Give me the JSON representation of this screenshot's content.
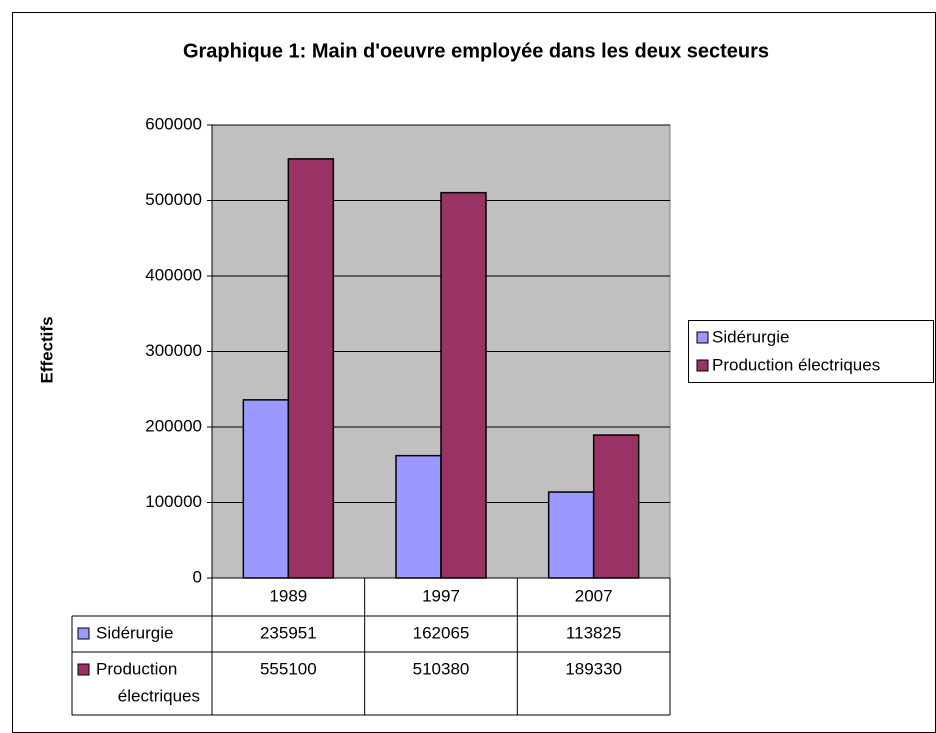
{
  "chart_data": {
    "type": "bar",
    "title": "Graphique 1: Main d'oeuvre employée dans les deux secteurs",
    "y_label": "Effectifs",
    "categories": [
      "1989",
      "1997",
      "2007"
    ],
    "series": [
      {
        "name": "Sidérurgie",
        "color": "#9999ff",
        "values": [
          235951,
          162065,
          113825
        ]
      },
      {
        "name": "Production électriques",
        "table_name": [
          "Production",
          "électriques"
        ],
        "color": "#993366",
        "values": [
          555100,
          510380,
          189330
        ]
      }
    ],
    "ylim": [
      0,
      600000
    ],
    "yticks": [
      0,
      100000,
      200000,
      300000,
      400000,
      500000,
      600000
    ],
    "grid": true,
    "legend": "right",
    "plot_background": "#c0c0c0"
  }
}
